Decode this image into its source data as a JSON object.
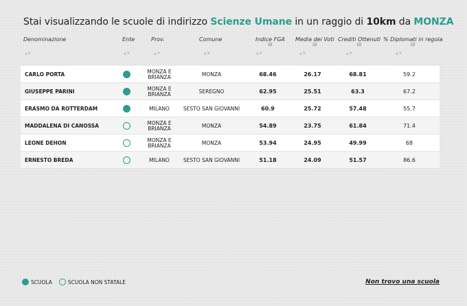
{
  "title": {
    "prefix": "Stai visualizzando le scuole di indirizzo ",
    "indirizzo": "Scienze Umane",
    "middle": " in un raggio di ",
    "raggio": "10km",
    "da": " da ",
    "citta": "MONZA"
  },
  "headers": {
    "denominazione": "Denominazione",
    "ente": "Ente",
    "prov": "Prov.",
    "comune": "Comune",
    "fga": "Indice FGA",
    "media": "Media dei Voti",
    "crediti": "Crediti Ottenuti",
    "diplomati": "% Diplomati in regola",
    "info": "(i)",
    "sort": "▲▼"
  },
  "rows": [
    {
      "name": "CARLO PORTA",
      "statale": true,
      "prov1": "MONZA E",
      "prov2": "BRIANZA",
      "comune": "MONZA",
      "fga": "68.46",
      "media": "26.17",
      "crediti": "68.81",
      "diplomati": "59.2"
    },
    {
      "name": "GIUSEPPE PARINI",
      "statale": true,
      "prov1": "MONZA E",
      "prov2": "BRIANZA",
      "comune": "SEREGNO",
      "fga": "62.95",
      "media": "25.51",
      "crediti": "63.3",
      "diplomati": "67.2"
    },
    {
      "name": "ERASMO DA ROTTERDAM",
      "statale": true,
      "prov1": "MILANO",
      "prov2": "",
      "comune": "SESTO SAN GIOVANNI",
      "fga": "60.9",
      "media": "25.72",
      "crediti": "57.48",
      "diplomati": "55.7"
    },
    {
      "name": "MADDALENA DI CANOSSA",
      "statale": false,
      "prov1": "MONZA E",
      "prov2": "BRIANZA",
      "comune": "MONZA",
      "fga": "54.89",
      "media": "23.75",
      "crediti": "61.84",
      "diplomati": "71.4"
    },
    {
      "name": "LEONE DEHON",
      "statale": false,
      "prov1": "MONZA E",
      "prov2": "BRIANZA",
      "comune": "MONZA",
      "fga": "53.94",
      "media": "24.95",
      "crediti": "49.99",
      "diplomati": "68"
    },
    {
      "name": "ERNESTO BREDA",
      "statale": false,
      "prov1": "MILANO",
      "prov2": "",
      "comune": "SESTO SAN GIOVANNI",
      "fga": "51.18",
      "media": "24.09",
      "crediti": "51.57",
      "diplomati": "86.6"
    }
  ],
  "legend": {
    "scuola": "SCUOLA",
    "non_statale": "SCUOLA NON STATALE"
  },
  "links": {
    "non_trovo": "Non trovo una scuola"
  },
  "colors": {
    "accent": "#2a9d8f"
  }
}
